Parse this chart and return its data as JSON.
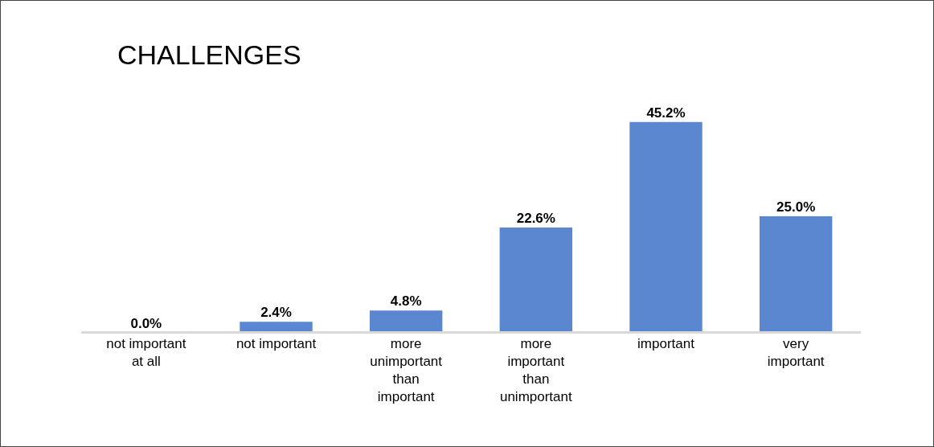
{
  "chart_data": {
    "type": "bar",
    "title": "CHALLENGES",
    "categories": [
      "not important at all",
      "not important",
      "more unimportant than important",
      "more important than unimportant",
      "important",
      "very important"
    ],
    "values": [
      0.0,
      2.4,
      4.8,
      22.6,
      45.2,
      25.0
    ],
    "value_labels": [
      "0.0%",
      "2.4%",
      "4.8%",
      "22.6%",
      "45.2%",
      "25.0%"
    ],
    "color": "#5b87d0"
  }
}
